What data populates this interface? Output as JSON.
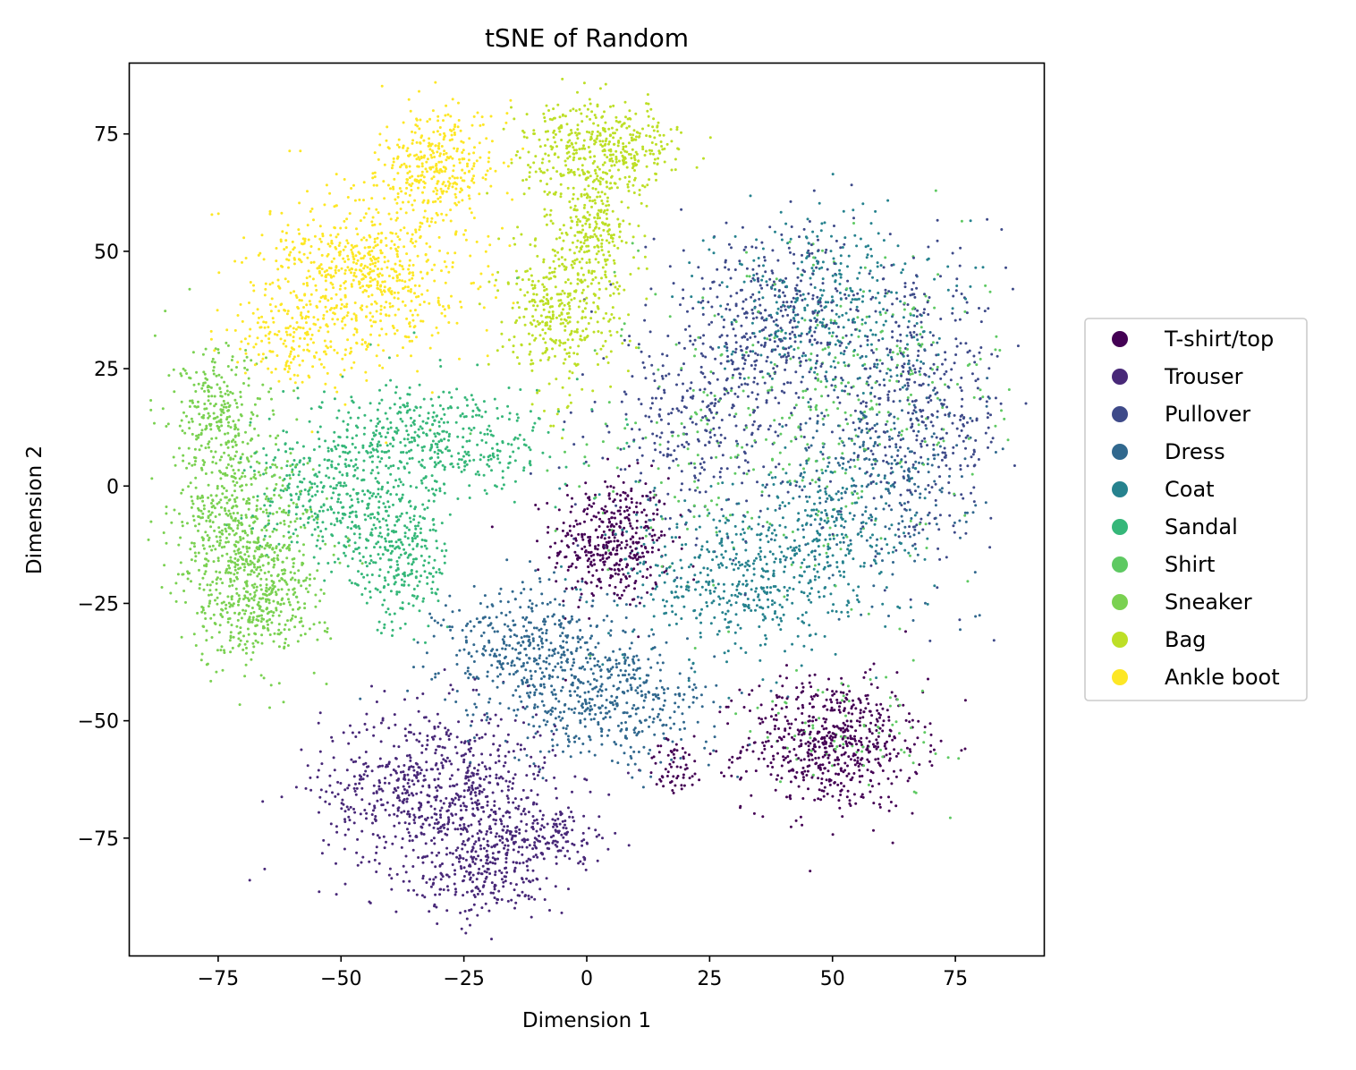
{
  "chart_data": {
    "type": "scatter",
    "title": "tSNE of Random",
    "xlabel": "Dimension 1",
    "ylabel": "Dimension 2",
    "xlim": [
      -93,
      93
    ],
    "ylim": [
      -100,
      90
    ],
    "xticks": [
      -75,
      -50,
      -25,
      0,
      25,
      50,
      75
    ],
    "xtick_labels": [
      "−75",
      "−50",
      "−25",
      "0",
      "25",
      "50",
      "75"
    ],
    "yticks": [
      -75,
      -50,
      -25,
      0,
      25,
      50,
      75
    ],
    "ytick_labels": [
      "−75",
      "−50",
      "−25",
      "0",
      "25",
      "50",
      "75"
    ],
    "grid": false,
    "legend_position": "right",
    "series": [
      {
        "name": "T-shirt/top",
        "color": "#440154",
        "clusters": [
          {
            "cx": 5,
            "cy": -12,
            "sx": 6,
            "sy": 7,
            "n": 420
          },
          {
            "cx": 50,
            "cy": -55,
            "sx": 9,
            "sy": 7,
            "n": 620
          },
          {
            "cx": 18,
            "cy": -60,
            "sx": 3,
            "sy": 3,
            "n": 60
          }
        ]
      },
      {
        "name": "Trouser",
        "color": "#482878",
        "clusters": [
          {
            "cx": -30,
            "cy": -65,
            "sx": 12,
            "sy": 9,
            "n": 800
          },
          {
            "cx": -20,
            "cy": -82,
            "sx": 7,
            "sy": 5,
            "n": 250
          },
          {
            "cx": -7,
            "cy": -74,
            "sx": 6,
            "sy": 3,
            "n": 130
          }
        ]
      },
      {
        "name": "Pullover",
        "color": "#3e4a89",
        "clusters": [
          {
            "cx": 38,
            "cy": 35,
            "sx": 12,
            "sy": 10,
            "n": 450
          },
          {
            "cx": 68,
            "cy": 15,
            "sx": 9,
            "sy": 14,
            "n": 420
          },
          {
            "cx": 22,
            "cy": 12,
            "sx": 10,
            "sy": 10,
            "n": 300
          }
        ]
      },
      {
        "name": "Dress",
        "color": "#31688e",
        "clusters": [
          {
            "cx": -10,
            "cy": -35,
            "sx": 10,
            "sy": 7,
            "n": 450
          },
          {
            "cx": 5,
            "cy": -47,
            "sx": 11,
            "sy": 6,
            "n": 400
          },
          {
            "cx": 60,
            "cy": 5,
            "sx": 10,
            "sy": 12,
            "n": 300
          }
        ]
      },
      {
        "name": "Coat",
        "color": "#26828e",
        "clusters": [
          {
            "cx": 30,
            "cy": -20,
            "sx": 11,
            "sy": 9,
            "n": 450
          },
          {
            "cx": 48,
            "cy": 40,
            "sx": 11,
            "sy": 9,
            "n": 350
          },
          {
            "cx": 50,
            "cy": -10,
            "sx": 9,
            "sy": 9,
            "n": 250
          }
        ]
      },
      {
        "name": "Sandal",
        "color": "#35b779",
        "clusters": [
          {
            "cx": -38,
            "cy": -15,
            "sx": 5,
            "sy": 8,
            "n": 300
          },
          {
            "cx": -30,
            "cy": 10,
            "sx": 12,
            "sy": 6,
            "n": 450
          },
          {
            "cx": -52,
            "cy": -2,
            "sx": 8,
            "sy": 7,
            "n": 350
          }
        ]
      },
      {
        "name": "Shirt",
        "color": "#5ec962",
        "clusters": [
          {
            "cx": 35,
            "cy": 10,
            "sx": 18,
            "sy": 18,
            "n": 260
          },
          {
            "cx": 60,
            "cy": 25,
            "sx": 12,
            "sy": 12,
            "n": 160
          },
          {
            "cx": 55,
            "cy": -52,
            "sx": 10,
            "sy": 6,
            "n": 80
          }
        ]
      },
      {
        "name": "Sneaker",
        "color": "#7ad151",
        "clusters": [
          {
            "cx": -70,
            "cy": -12,
            "sx": 7,
            "sy": 12,
            "n": 700
          },
          {
            "cx": -65,
            "cy": -25,
            "sx": 6,
            "sy": 5,
            "n": 220
          },
          {
            "cx": -75,
            "cy": 15,
            "sx": 5,
            "sy": 7,
            "n": 250
          }
        ]
      },
      {
        "name": "Bag",
        "color": "#bddf26",
        "clusters": [
          {
            "cx": 3,
            "cy": 72,
            "sx": 8,
            "sy": 5,
            "n": 450
          },
          {
            "cx": -5,
            "cy": 38,
            "sx": 6,
            "sy": 9,
            "n": 400
          },
          {
            "cx": 2,
            "cy": 55,
            "sx": 4,
            "sy": 6,
            "n": 200
          }
        ]
      },
      {
        "name": "Ankle boot",
        "color": "#fde725",
        "clusters": [
          {
            "cx": -45,
            "cy": 45,
            "sx": 10,
            "sy": 9,
            "n": 700
          },
          {
            "cx": -30,
            "cy": 68,
            "sx": 6,
            "sy": 6,
            "n": 350
          },
          {
            "cx": -62,
            "cy": 32,
            "sx": 6,
            "sy": 5,
            "n": 150
          }
        ]
      }
    ]
  }
}
